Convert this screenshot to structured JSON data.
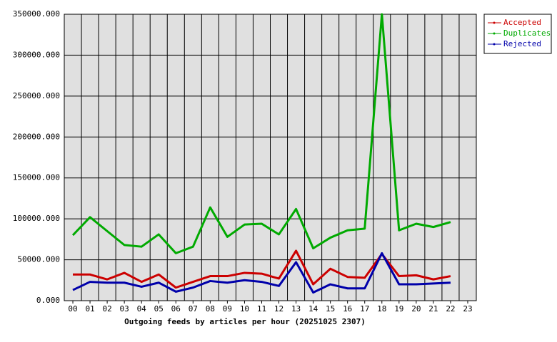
{
  "chart_data": {
    "type": "line",
    "title": "Outgoing feeds by articles per hour (20251025 2307)",
    "categories": [
      "00",
      "01",
      "02",
      "03",
      "04",
      "05",
      "06",
      "07",
      "08",
      "09",
      "10",
      "11",
      "12",
      "13",
      "14",
      "15",
      "16",
      "17",
      "18",
      "19",
      "20",
      "21",
      "22",
      "23"
    ],
    "series": [
      {
        "name": "Accepted",
        "color": "#cc0000",
        "values": [
          32000,
          32000,
          26000,
          34000,
          23000,
          32000,
          16000,
          23000,
          30000,
          30000,
          34000,
          33000,
          27000,
          61000,
          20000,
          39000,
          29000,
          28000,
          57000,
          30000,
          31000,
          26000,
          30000,
          null
        ]
      },
      {
        "name": "Duplicates",
        "color": "#00aa00",
        "values": [
          80000,
          102000,
          85000,
          68000,
          66000,
          81000,
          58000,
          66000,
          114000,
          78000,
          93000,
          94000,
          81000,
          112000,
          64000,
          77000,
          86000,
          88000,
          350000,
          86000,
          94000,
          90000,
          96000,
          null
        ]
      },
      {
        "name": "Rejected",
        "color": "#0000aa",
        "values": [
          13000,
          23000,
          22000,
          22000,
          17000,
          22000,
          11000,
          16000,
          24000,
          22000,
          25000,
          23000,
          18000,
          47000,
          10000,
          20000,
          15000,
          15000,
          58000,
          20000,
          20000,
          21000,
          22000,
          null
        ]
      }
    ],
    "ylim": [
      0,
      350000
    ],
    "yticks": [
      {
        "value": 0,
        "label": "0.000"
      },
      {
        "value": 50000,
        "label": "50000.000"
      },
      {
        "value": 100000,
        "label": "100000.000"
      },
      {
        "value": 150000,
        "label": "150000.000"
      },
      {
        "value": 200000,
        "label": "200000.000"
      },
      {
        "value": 250000,
        "label": "250000.000"
      },
      {
        "value": 300000,
        "label": "300000.000"
      },
      {
        "value": 350000,
        "label": "350000.000"
      }
    ],
    "grid": true,
    "legend": "top-right"
  }
}
